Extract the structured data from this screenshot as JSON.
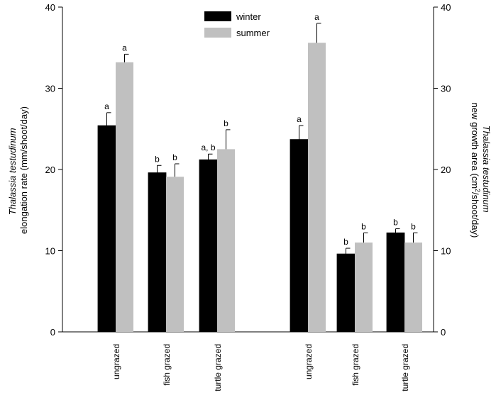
{
  "chart_data": {
    "type": "bar",
    "ylim": [
      0,
      40
    ],
    "yticks": [
      0,
      10,
      20,
      30,
      40
    ],
    "grid": false,
    "legend_position": "top-center",
    "series_colors": {
      "winter": "#000000",
      "summer": "#c0c0c0"
    },
    "legend": [
      "winter",
      "summer"
    ],
    "left_axis": {
      "label_italic": "Thalassia testudinum",
      "label": "elongation rate (mm/shoot/day)"
    },
    "right_axis": {
      "label_italic": "Thalassia testudinum",
      "label_pre": "new growth area (cm",
      "label_sup": "2",
      "label_post": "/shoot/day)"
    },
    "groups": [
      {
        "axis": "left",
        "categories": [
          "ungrazed",
          "fish grazed",
          "turtle grazed"
        ],
        "series": [
          {
            "name": "winter",
            "values": [
              25.4,
              19.6,
              21.2
            ],
            "errors": [
              1.6,
              0.9,
              0.7
            ],
            "labels": [
              "a",
              "b",
              "a, b"
            ]
          },
          {
            "name": "summer",
            "values": [
              33.2,
              19.1,
              22.5
            ],
            "errors": [
              1.0,
              1.6,
              2.4
            ],
            "labels": [
              "a",
              "b",
              "b"
            ]
          }
        ]
      },
      {
        "axis": "right",
        "categories": [
          "ungrazed",
          "fish grazed",
          "turtle grazed"
        ],
        "series": [
          {
            "name": "winter",
            "values": [
              23.7,
              9.6,
              12.2
            ],
            "errors": [
              1.7,
              0.7,
              0.5
            ],
            "labels": [
              "a",
              "b",
              "b"
            ]
          },
          {
            "name": "summer",
            "values": [
              35.6,
              11.0,
              11.0
            ],
            "errors": [
              2.4,
              1.2,
              1.2
            ],
            "labels": [
              "a",
              "b",
              "b"
            ]
          }
        ]
      }
    ]
  }
}
